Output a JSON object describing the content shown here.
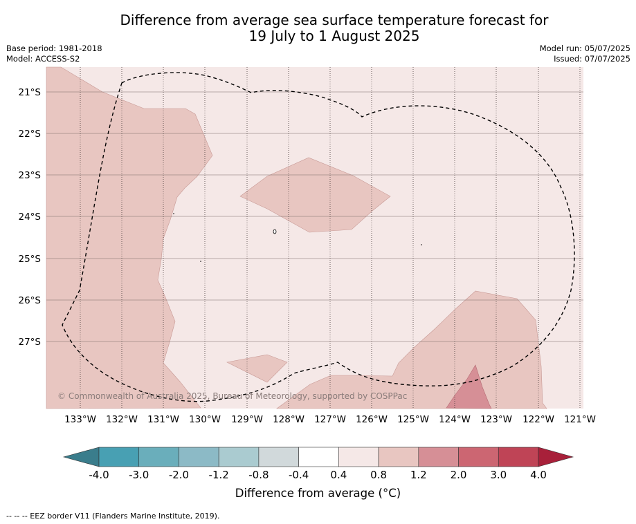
{
  "title_line1": "Difference from average sea surface temperature forecast for",
  "title_line2": "19 July to 1 August 2025",
  "meta": {
    "base_period": "Base period: 1981-2018",
    "model": "Model: ACCESS-S2",
    "model_run": "Model run: 05/07/2025",
    "issued": "Issued: 07/07/2025"
  },
  "map": {
    "lat_labels": [
      "21°S",
      "22°S",
      "23°S",
      "24°S",
      "25°S",
      "26°S",
      "27°S"
    ],
    "lon_labels": [
      "133°W",
      "132°W",
      "131°W",
      "130°W",
      "129°W",
      "128°W",
      "127°W",
      "126°W",
      "125°W",
      "124°W",
      "123°W",
      "122°W",
      "121°W"
    ],
    "copyright": "© Commonwealth of Australia 2025, Bureau of Meteorology, supported by COSPPac"
  },
  "colorbar": {
    "tick_labels": [
      "-4.0",
      "-3.0",
      "-2.0",
      "-1.2",
      "-0.8",
      "-0.4",
      "0.4",
      "0.8",
      "1.2",
      "2.0",
      "3.0",
      "4.0"
    ],
    "label": "Difference from average (°C)",
    "colors": {
      "below_min": "#3a7d8c",
      "bins": [
        "#48a0b3",
        "#6aaebb",
        "#8cbac6",
        "#aacbd0",
        "#d1d9db",
        "#ffffff",
        "#f5e8e7",
        "#e8c6c1",
        "#d68f96",
        "#cc6672",
        "#bf4456"
      ],
      "above_max": "#a8203a"
    }
  },
  "legend_note": "--  --  -- EEZ border V11 (Flanders Marine Institute, 2019)."
}
